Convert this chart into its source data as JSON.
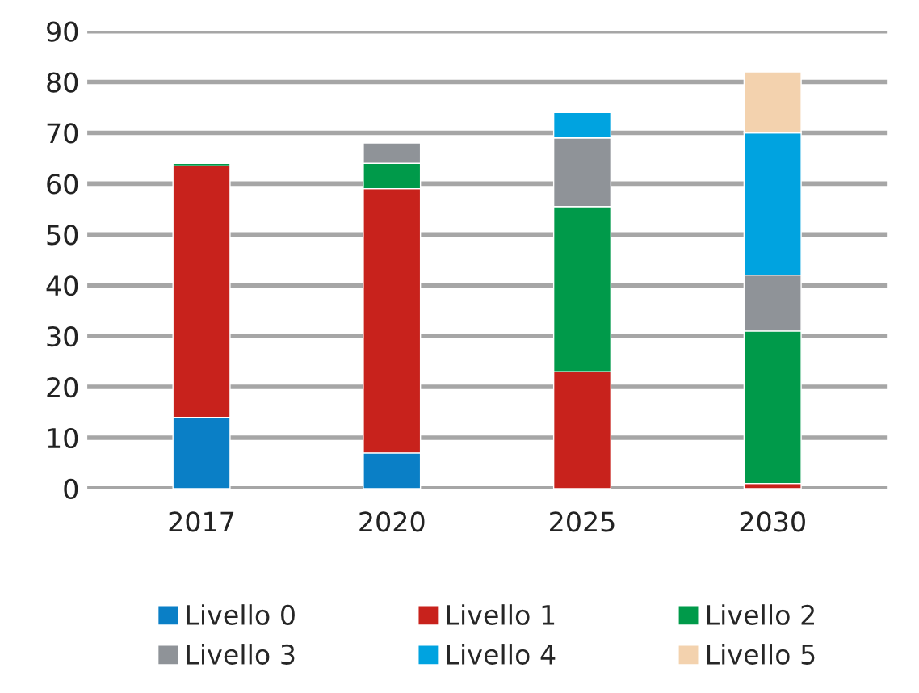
{
  "chart_data": {
    "type": "bar",
    "stacked": true,
    "categories": [
      "2017",
      "2020",
      "2025",
      "2030"
    ],
    "series": [
      {
        "name": "Livello 0",
        "color": "#0a7fc6",
        "values": [
          14,
          7,
          null,
          null
        ]
      },
      {
        "name": "Livello 1",
        "color": "#c8221c",
        "values": [
          49.5,
          52,
          23,
          1
        ]
      },
      {
        "name": "Livello 2",
        "color": "#009a4a",
        "values": [
          0.5,
          5,
          32.5,
          30
        ]
      },
      {
        "name": "Livello 3",
        "color": "#8f9398",
        "values": [
          null,
          4,
          13.5,
          11
        ]
      },
      {
        "name": "Livello 4",
        "color": "#00a3e0",
        "values": [
          null,
          null,
          5,
          28
        ]
      },
      {
        "name": "Livello 5",
        "color": "#f3d2ae",
        "values": [
          null,
          null,
          null,
          12
        ]
      }
    ],
    "ylim": [
      0,
      90
    ],
    "yticks": [
      0,
      10,
      20,
      30,
      40,
      50,
      60,
      70,
      80,
      90
    ],
    "grid": "y",
    "legend": "bottom"
  }
}
